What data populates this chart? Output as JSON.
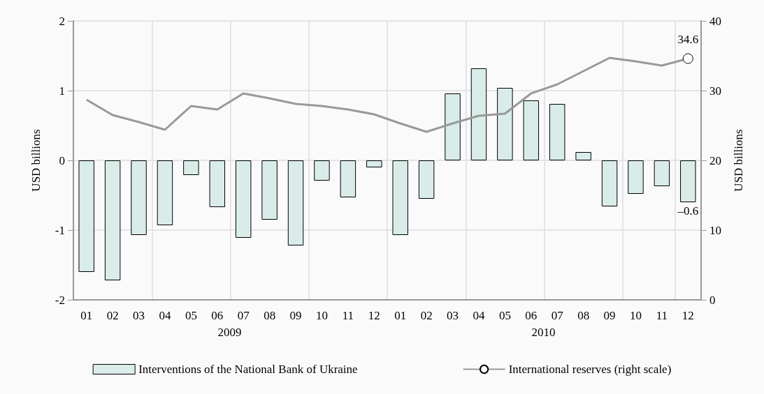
{
  "chart_data": {
    "type": "bar",
    "categories": [
      "01",
      "02",
      "03",
      "04",
      "05",
      "06",
      "07",
      "08",
      "09",
      "10",
      "11",
      "12",
      "01",
      "02",
      "03",
      "04",
      "05",
      "06",
      "07",
      "08",
      "09",
      "10",
      "11",
      "12"
    ],
    "series": [
      {
        "name": "Interventions of the National Bank of Ukraine",
        "color": "#d9ecea",
        "values": [
          -1.6,
          -1.72,
          -1.07,
          -0.93,
          -0.21,
          -0.67,
          -1.11,
          -0.85,
          -1.22,
          -0.29,
          -0.53,
          -0.1,
          -1.07,
          -0.55,
          0.96,
          1.32,
          1.04,
          0.86,
          0.81,
          0.12,
          -0.66,
          -0.48,
          -0.37,
          -0.6
        ],
        "value_labels": [
          null,
          null,
          null,
          null,
          null,
          null,
          null,
          null,
          null,
          null,
          null,
          null,
          null,
          null,
          null,
          null,
          null,
          null,
          null,
          null,
          null,
          null,
          null,
          "–0.6"
        ]
      },
      {
        "name": "International reserves (right scale)",
        "type": "line",
        "axis": "y2",
        "color": "#999999",
        "values": [
          28.7,
          26.5,
          25.5,
          24.4,
          27.8,
          27.3,
          29.6,
          28.9,
          28.1,
          27.8,
          27.3,
          26.6,
          25.3,
          24.1,
          25.3,
          26.4,
          26.7,
          29.6,
          30.9,
          32.8,
          34.7,
          34.2,
          33.6,
          34.6
        ],
        "value_labels": [
          null,
          null,
          null,
          null,
          null,
          null,
          null,
          null,
          null,
          null,
          null,
          null,
          null,
          null,
          null,
          null,
          null,
          null,
          null,
          null,
          null,
          null,
          null,
          "34.6"
        ]
      }
    ],
    "ylabel": "USD billions",
    "y2label": "USD billions",
    "ylim": [
      -2,
      2
    ],
    "yticks": [
      -2,
      -1,
      0,
      1,
      2
    ],
    "y2lim": [
      0,
      40
    ],
    "y2ticks": [
      0,
      10,
      20,
      30,
      40
    ],
    "annotations": [
      "2009",
      "2010"
    ],
    "grid": true,
    "legend": "bottom"
  }
}
